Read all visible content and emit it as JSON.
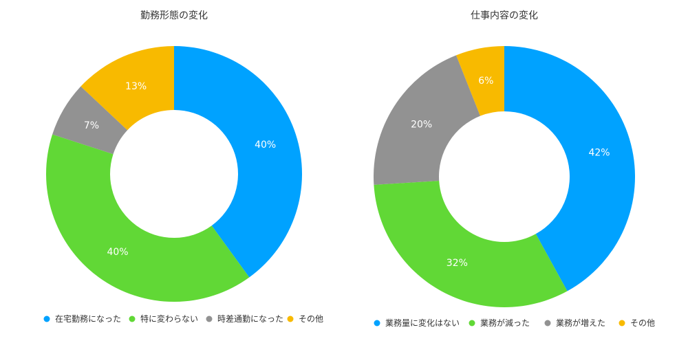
{
  "chart_data": [
    {
      "type": "pie",
      "title": "勤務形態の変化",
      "legend_position": "bottom",
      "categories": [
        "在宅勤務になった",
        "特に変わらない",
        "時差通勤になった",
        "その他"
      ],
      "values": [
        40,
        40,
        7,
        13
      ],
      "value_labels": [
        "40%",
        "40%",
        "7%",
        "13%"
      ],
      "colors": [
        "#00a2ff",
        "#61d836",
        "#929292",
        "#f8ba00"
      ]
    },
    {
      "type": "pie",
      "title": "仕事内容の変化",
      "legend_position": "bottom",
      "categories": [
        "業務量に変化はない",
        "業務が減った",
        "業務が増えた",
        "その他"
      ],
      "values": [
        42,
        32,
        20,
        6
      ],
      "value_labels": [
        "42%",
        "32%",
        "20%",
        "6%"
      ],
      "colors": [
        "#00a2ff",
        "#61d836",
        "#929292",
        "#f8ba00"
      ]
    }
  ]
}
